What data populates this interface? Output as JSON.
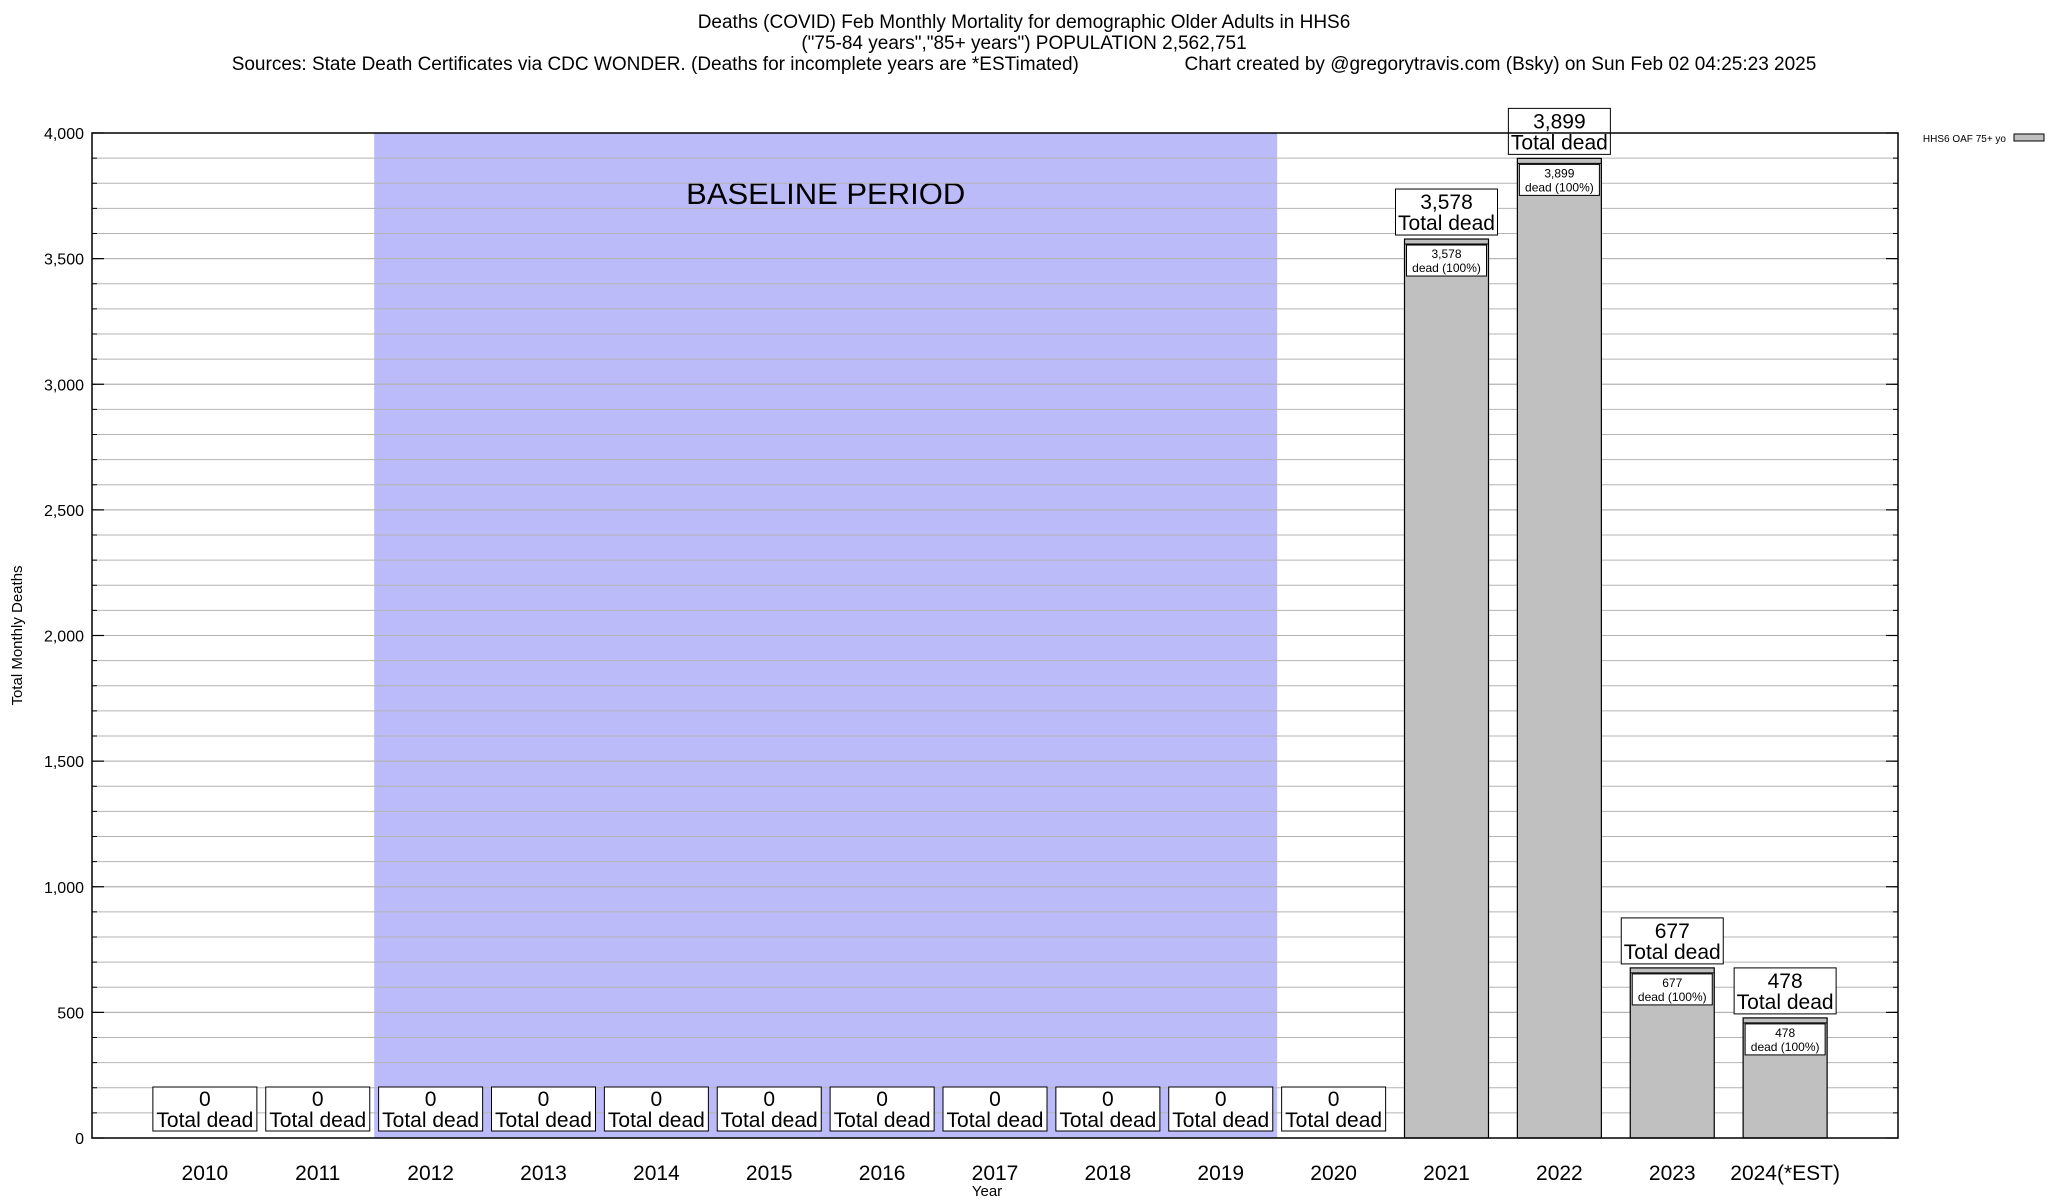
{
  "chart_data": {
    "type": "bar",
    "title": "Deaths (COVID) Feb Monthly Mortality for demographic Older Adults in HHS6",
    "subtitle": "(\"75-84 years\",\"85+ years\") POPULATION 2,562,751",
    "sources": "Sources: State Death Certificates via CDC WONDER. (Deaths for incomplete years are *ESTimated)",
    "credit": "Chart created by @gregorytravis.com (Bsky) on Sun Feb 02 04:25:23 2025",
    "xlabel": "Year",
    "ylabel": "Total Monthly Deaths",
    "categories": [
      "2010",
      "2011",
      "2012",
      "2013",
      "2014",
      "2015",
      "2016",
      "2017",
      "2018",
      "2019",
      "2020",
      "2021",
      "2022",
      "2023",
      "2024(*EST)"
    ],
    "series": [
      {
        "name": "HHS6 OAF 75+ yo",
        "values": [
          0,
          0,
          0,
          0,
          0,
          0,
          0,
          0,
          0,
          0,
          0,
          3578,
          3899,
          677,
          478
        ],
        "labels": [
          "0",
          "0",
          "0",
          "0",
          "0",
          "0",
          "0",
          "0",
          "0",
          "0",
          "0",
          "3,578",
          "3,899",
          "677",
          "478"
        ],
        "inner_labels": [
          "",
          "",
          "",
          "",
          "",
          "",
          "",
          "",
          "",
          "",
          "",
          "3,578",
          "3,899",
          "677",
          "478"
        ]
      }
    ],
    "total_label": "Total dead",
    "inner_label_suffix": "dead (100%)",
    "ylim": [
      0,
      4000
    ],
    "yticks": [
      0,
      500,
      1000,
      1500,
      2000,
      2500,
      3000,
      3500,
      4000
    ],
    "ytick_labels": [
      "0",
      "500",
      "1,000",
      "1,500",
      "2,000",
      "2,500",
      "3,000",
      "3,500",
      "4,000"
    ],
    "grid": true,
    "legend_position": "top-right",
    "baseline": {
      "label": "BASELINE PERIOD",
      "start": "2012",
      "end": "2019"
    },
    "colors": {
      "bar": "#c0c0c0",
      "baseline_shade": "#bbbbf9",
      "grid": "#b4b4b4",
      "frame": "#000000"
    }
  }
}
